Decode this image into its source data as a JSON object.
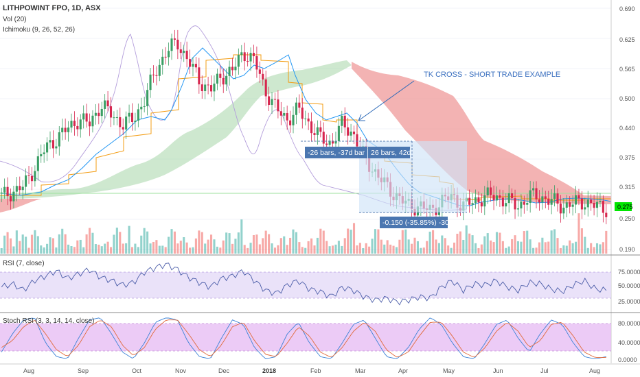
{
  "header": {
    "symbol_line": "LITHPOWINT FPO, 1D, ASX",
    "vol_line": "Vol (20)",
    "ichimoku_line": "Ichimoku (9, 26, 52, 26)"
  },
  "annotation": {
    "callout": "TK CROSS - SHORT TRADE EXAMPLE",
    "measure_left": "-26 bars, -37d",
    "measure_mid": "bar",
    "measure_right": "26 bars, 42d",
    "measure_price": "-0.150 (-35.85%) -30"
  },
  "colors": {
    "up": "#26a69a",
    "down": "#ef5350",
    "up_candle": "#3a9e64",
    "down_candle": "#d6264e",
    "tenkan": "#2196f3",
    "kijun": "#f39c12",
    "chikou": "#b39ddb",
    "cloud_up": "#a5d6a7",
    "cloud_down": "#ef9a9a",
    "rsi_band": "#e1d5f7",
    "stoch_band": "#e4b5f2",
    "price_tag": "#00e600",
    "measure_box": "#cfe3f8",
    "label_bg": "#4a76b0"
  },
  "chart_data": [
    {
      "type": "candlestick",
      "title": "LITHPOWINT FPO, 1D, ASX",
      "price_axis_ticks": [
        "0.690",
        "0.625",
        "0.565",
        "0.500",
        "0.440",
        "0.375",
        "0.315",
        "0.250",
        "0.190"
      ],
      "x_ticks": [
        "Aug",
        "Sep",
        "Oct",
        "Nov",
        "Dec",
        "2018",
        "Feb",
        "Mar",
        "Apr",
        "May",
        "Jun",
        "Jul",
        "Aug"
      ],
      "last_price": "0.275",
      "ylim": [
        0.19,
        0.69
      ],
      "close_series": [
        0.3,
        0.31,
        0.32,
        0.36,
        0.4,
        0.42,
        0.44,
        0.46,
        0.45,
        0.49,
        0.47,
        0.45,
        0.46,
        0.5,
        0.56,
        0.6,
        0.62,
        0.58,
        0.54,
        0.52,
        0.55,
        0.56,
        0.6,
        0.58,
        0.52,
        0.48,
        0.46,
        0.48,
        0.45,
        0.42,
        0.41,
        0.45,
        0.43,
        0.38,
        0.35,
        0.32,
        0.3,
        0.28,
        0.28,
        0.27,
        0.29,
        0.3,
        0.28,
        0.29,
        0.3,
        0.3,
        0.29,
        0.28,
        0.3,
        0.3,
        0.29,
        0.28,
        0.285,
        0.29,
        0.28,
        0.275
      ]
    },
    {
      "type": "line",
      "title": "RSI (7, close)",
      "y_ticks": [
        "75.0000",
        "50.0000",
        "25.0000"
      ],
      "band": [
        30,
        70
      ],
      "ylim": [
        10,
        90
      ],
      "values": [
        45,
        50,
        40,
        55,
        62,
        70,
        58,
        65,
        72,
        60,
        55,
        48,
        52,
        68,
        75,
        80,
        72,
        60,
        52,
        45,
        58,
        62,
        70,
        55,
        40,
        35,
        48,
        55,
        42,
        38,
        30,
        45,
        40,
        30,
        25,
        28,
        22,
        25,
        30,
        28,
        45,
        55,
        40,
        50,
        48,
        55,
        45,
        40,
        52,
        50,
        42,
        38,
        48,
        55,
        42,
        40
      ]
    },
    {
      "type": "line",
      "title": "Stoch RSI (3, 3, 14, 14, close)",
      "y_ticks": [
        "80.0000",
        "40.0000",
        "0.0000"
      ],
      "band": [
        20,
        80
      ],
      "ylim": [
        0,
        100
      ],
      "k_values": [
        20,
        60,
        90,
        95,
        40,
        10,
        5,
        50,
        90,
        95,
        60,
        20,
        5,
        40,
        85,
        95,
        90,
        40,
        10,
        5,
        50,
        90,
        80,
        30,
        5,
        10,
        60,
        85,
        40,
        10,
        5,
        40,
        80,
        90,
        50,
        10,
        5,
        30,
        70,
        95,
        80,
        40,
        10,
        5,
        40,
        80,
        90,
        50,
        20,
        60,
        90,
        80,
        40,
        10,
        5,
        10
      ],
      "d_values": [
        30,
        45,
        75,
        90,
        60,
        25,
        10,
        35,
        75,
        90,
        75,
        35,
        12,
        30,
        70,
        90,
        90,
        60,
        25,
        10,
        35,
        75,
        85,
        45,
        15,
        10,
        40,
        75,
        55,
        20,
        8,
        30,
        65,
        85,
        65,
        25,
        8,
        20,
        55,
        85,
        85,
        55,
        20,
        8,
        30,
        65,
        85,
        65,
        30,
        45,
        80,
        85,
        55,
        20,
        8,
        8
      ]
    }
  ]
}
